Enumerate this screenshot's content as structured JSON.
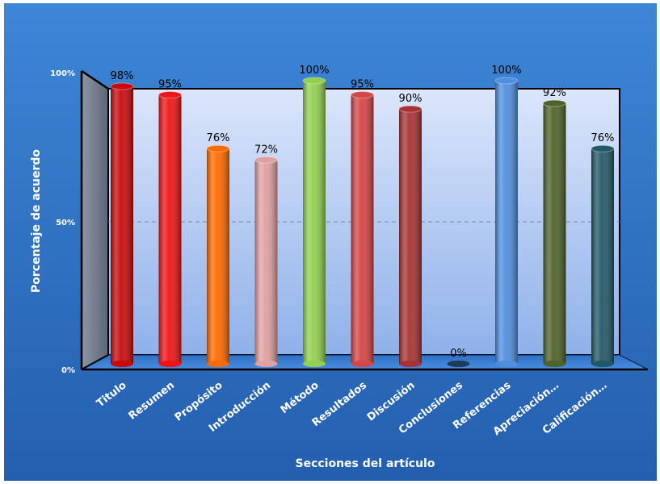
{
  "chart_data": {
    "type": "bar",
    "title": "",
    "xlabel": "Secciones del artículo",
    "ylabel": "Porcentaje de acuerdo",
    "ylim": [
      0,
      100
    ],
    "yticks": [
      "0%",
      "50%",
      "100%"
    ],
    "grid": "dashed line at 50%",
    "categories": [
      "Titulo",
      "Resumen",
      "Propósito",
      "Introducción",
      "Método",
      "Resultados",
      "Discusión",
      "Conclusiones",
      "Referencias",
      "Apreciación…",
      "Calificación…"
    ],
    "values": [
      98,
      95,
      76,
      72,
      100,
      95,
      90,
      0,
      100,
      92,
      76
    ],
    "data_labels": [
      "98%",
      "95%",
      "76%",
      "72%",
      "100%",
      "95%",
      "90%",
      "0%",
      "100%",
      "92%",
      "76%"
    ],
    "colors": [
      "#c80a0a",
      "#f01414",
      "#ff6a00",
      "#e0a0a0",
      "#92d050",
      "#d64545",
      "#a83232",
      "#1f3b57",
      "#4e8fe0",
      "#4f6228",
      "#215867"
    ]
  }
}
